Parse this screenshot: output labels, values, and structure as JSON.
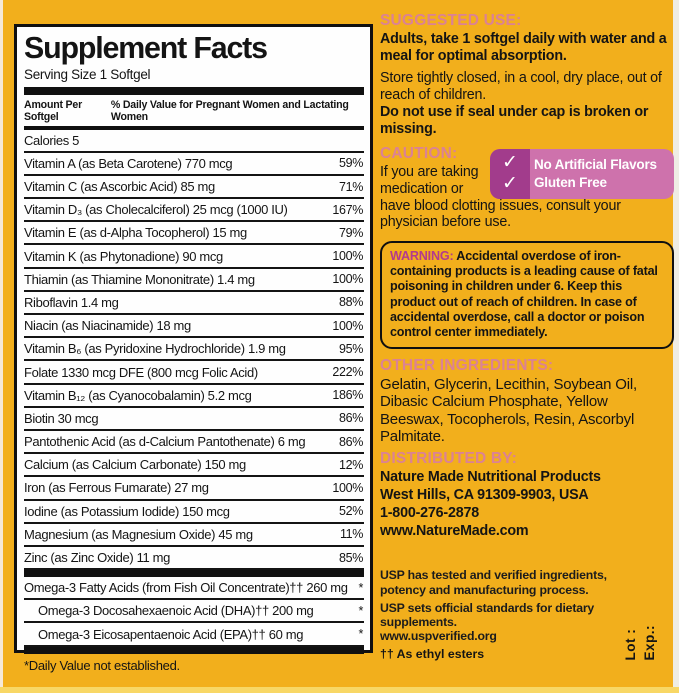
{
  "panel": {
    "title": "Supplement Facts",
    "serving_size": "Serving Size 1 Softgel",
    "col_left": "Amount Per Softgel",
    "col_right": "% Daily Value for Pregnant Women and Lactating Women",
    "rows": [
      {
        "name": "Calories 5",
        "dv": ""
      },
      {
        "name": "Vitamin A (as Beta Carotene)  770 mcg",
        "dv": "59%"
      },
      {
        "name": "Vitamin C (as Ascorbic Acid)  85 mg",
        "dv": "71%"
      },
      {
        "name": "Vitamin D₃ (as Cholecalciferol)  25 mcg (1000 IU)",
        "dv": "167%"
      },
      {
        "name": "Vitamin E (as d-Alpha Tocopherol)  15 mg",
        "dv": "79%"
      },
      {
        "name": "Vitamin K (as Phytonadione)  90 mcg",
        "dv": "100%"
      },
      {
        "name": "Thiamin (as Thiamine Mononitrate)  1.4 mg",
        "dv": "100%"
      },
      {
        "name": "Riboflavin  1.4 mg",
        "dv": "88%"
      },
      {
        "name": "Niacin (as Niacinamide)  18 mg",
        "dv": "100%"
      },
      {
        "name": "Vitamin B₆ (as Pyridoxine Hydrochloride)  1.9 mg",
        "dv": "95%"
      },
      {
        "name": "Folate  1330 mcg DFE (800 mcg Folic Acid)",
        "dv": "222%"
      },
      {
        "name": "Vitamin B₁₂ (as Cyanocobalamin)  5.2 mcg",
        "dv": "186%"
      },
      {
        "name": "Biotin  30 mcg",
        "dv": "86%"
      },
      {
        "name": "Pantothenic Acid (as d-Calcium Pantothenate)  6 mg",
        "dv": "86%"
      },
      {
        "name": "Calcium (as Calcium Carbonate)  150 mg",
        "dv": "12%"
      },
      {
        "name": "Iron (as Ferrous Fumarate)  27 mg",
        "dv": "100%"
      },
      {
        "name": "Iodine (as Potassium Iodide)  150 mcg",
        "dv": "52%"
      },
      {
        "name": "Magnesium (as Magnesium Oxide)  45 mg",
        "dv": "11%"
      },
      {
        "name": "Zinc (as Zinc Oxide)  11 mg",
        "dv": "85%"
      }
    ],
    "omega_rows": [
      {
        "name": "Omega-3 Fatty Acids (from Fish Oil Concentrate)††  260 mg",
        "dv": "*",
        "indent": false
      },
      {
        "name": "Omega-3 Docosahexaenoic Acid (DHA)††  200 mg",
        "dv": "*",
        "indent": true
      },
      {
        "name": "Omega-3 Eicosapentaenoic Acid (EPA)††  60 mg",
        "dv": "*",
        "indent": true
      }
    ],
    "footnote": "*Daily Value not established."
  },
  "suggested_use": {
    "heading": "SUGGESTED USE:",
    "line1": "Adults, take 1 softgel daily with water and a meal for optimal absorption.",
    "line2": "Store tightly closed, in a cool, dry place, out of reach of children.",
    "line3": "Do not use if seal under cap is broken or missing."
  },
  "caution": {
    "heading": "CAUTION:",
    "text_left": "If you are taking medication or",
    "text_rest": "have blood clotting issues, consult your physician before use."
  },
  "badge": {
    "check": "✓",
    "line1": "No Artificial Flavors",
    "line2": "Gluten Free"
  },
  "warning": {
    "label": "WARNING:",
    "text": " Accidental overdose of iron-containing products is a leading cause of fatal poisoning in children under 6. Keep this product out of reach of children. In case of accidental overdose, call a doctor or poison control center immediately."
  },
  "other_ingredients": {
    "heading": "OTHER INGREDIENTS:",
    "text": "Gelatin, Glycerin, Lecithin, Soybean Oil, Dibasic Calcium Phosphate, Yellow Beeswax, Tocopherols, Resin, Ascorbyl Palmitate."
  },
  "distributed_by": {
    "heading": "DISTRIBUTED BY:",
    "line1": "Nature Made Nutritional Products",
    "line2": "West Hills, CA 91309-9903, USA",
    "line3": "1-800-276-2878",
    "line4": "www.NatureMade.com"
  },
  "usp": {
    "line1": "USP has tested and verified ingredients, potency and manufacturing process.",
    "line2": "USP sets official standards for dietary supplements.",
    "line3": "www.uspverified.org",
    "dagger_note": "†† As ethyl esters"
  },
  "lot_exp": {
    "lot": "Lot :",
    "exp": "Exp.:"
  },
  "colors": {
    "background_gold": "#F2AF1C",
    "heading_pink": "#DB8294",
    "warning_magenta": "#B23A8E",
    "badge_dark": "#A23C8C",
    "badge_light": "#CE72AC"
  }
}
